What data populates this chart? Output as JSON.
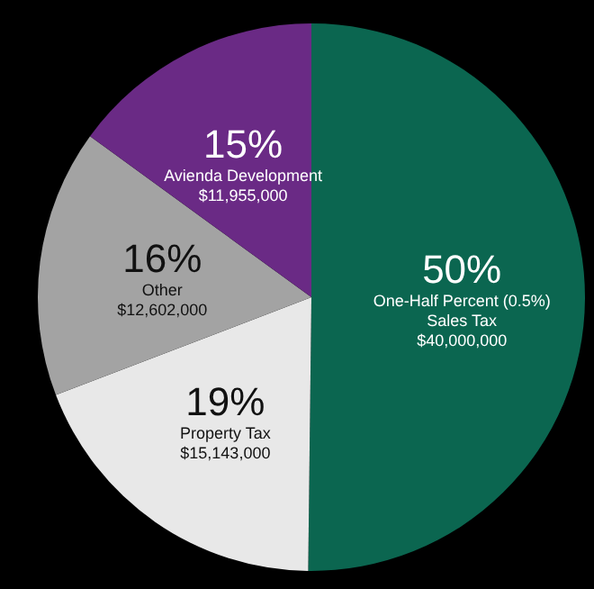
{
  "chart_data": {
    "type": "pie",
    "categories": [
      "One-Half Percent (0.5%) Sales Tax",
      "Property Tax",
      "Other",
      "Avienda Development"
    ],
    "values": [
      40000000,
      15143000,
      12602000,
      11955000
    ],
    "colors": [
      "#0b6650",
      "#e8e8e8",
      "#a3a3a3",
      "#6a2a85"
    ],
    "value_labels": [
      "$40,000,000",
      "$15,143,000",
      "$12,602,000",
      "$11,955,000"
    ],
    "annotations": [
      "50%",
      "19%",
      "16%",
      "15%"
    ],
    "legend": false
  }
}
